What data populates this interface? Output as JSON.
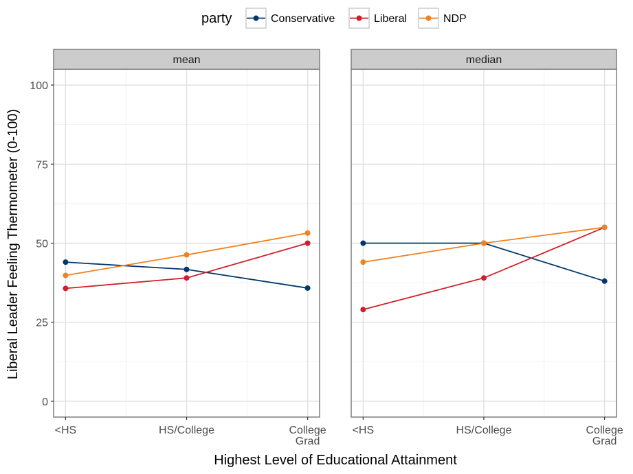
{
  "chart_data": {
    "type": "line",
    "xlabel": "Highest Level of Educational Attainment",
    "ylabel": "Liberal Leader Feeling Thermometer (0-100)",
    "categories": [
      "<HS",
      "HS/College",
      "College\nGrad"
    ],
    "ylim": [
      -5,
      105
    ],
    "yticks": [
      0,
      25,
      50,
      75,
      100
    ],
    "grid": true,
    "legend": {
      "title": "party",
      "position": "top",
      "entries": [
        "Conservative",
        "Liberal",
        "NDP"
      ]
    },
    "colors": {
      "Conservative": "#00386b",
      "Liberal": "#d0202a",
      "NDP": "#f08220"
    },
    "facets": [
      {
        "label": "mean",
        "series": [
          {
            "name": "Conservative",
            "values": [
              44,
              41.7,
              35.8
            ]
          },
          {
            "name": "Liberal",
            "values": [
              35.7,
              39,
              50
            ]
          },
          {
            "name": "NDP",
            "values": [
              39.8,
              46.3,
              53.2
            ]
          }
        ]
      },
      {
        "label": "median",
        "series": [
          {
            "name": "Conservative",
            "values": [
              50,
              50,
              38
            ]
          },
          {
            "name": "Liberal",
            "values": [
              29,
              39,
              55
            ]
          },
          {
            "name": "NDP",
            "values": [
              44,
              50,
              55
            ]
          }
        ]
      }
    ]
  }
}
